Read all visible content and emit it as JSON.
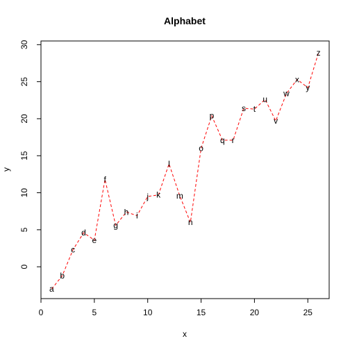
{
  "chart_data": {
    "type": "line",
    "title": "Alphabet",
    "xlabel": "x",
    "ylabel": "y",
    "xlim": [
      0,
      27
    ],
    "ylim": [
      -4.3,
      30.5
    ],
    "xticks": [
      "0",
      "5",
      "10",
      "15",
      "20",
      "25"
    ],
    "yticks": [
      "0",
      "5",
      "10",
      "15",
      "20",
      "25",
      "30"
    ],
    "grid": false,
    "line_color": "#ff0000",
    "line_style": "dashed",
    "series": [
      {
        "x": [
          1,
          2,
          3,
          4,
          5,
          6,
          7,
          8,
          9,
          10,
          11,
          12,
          13,
          14,
          15,
          16,
          17,
          18,
          19,
          20,
          21,
          22,
          23,
          24,
          25,
          26
        ],
        "y": [
          -3.0,
          -1.2,
          2.3,
          4.6,
          3.6,
          11.8,
          5.6,
          7.4,
          6.9,
          9.5,
          9.7,
          13.9,
          9.6,
          6.0,
          16.0,
          20.4,
          17.1,
          17.1,
          21.4,
          21.3,
          22.6,
          19.7,
          23.4,
          25.3,
          24.2,
          28.9
        ],
        "labels": [
          "a",
          "b",
          "c",
          "d",
          "e",
          "f",
          "g",
          "h",
          "i",
          "j",
          "k",
          "l",
          "m",
          "n",
          "o",
          "p",
          "q",
          "r",
          "s",
          "t",
          "u",
          "v",
          "w",
          "x",
          "y",
          "z"
        ]
      }
    ]
  }
}
